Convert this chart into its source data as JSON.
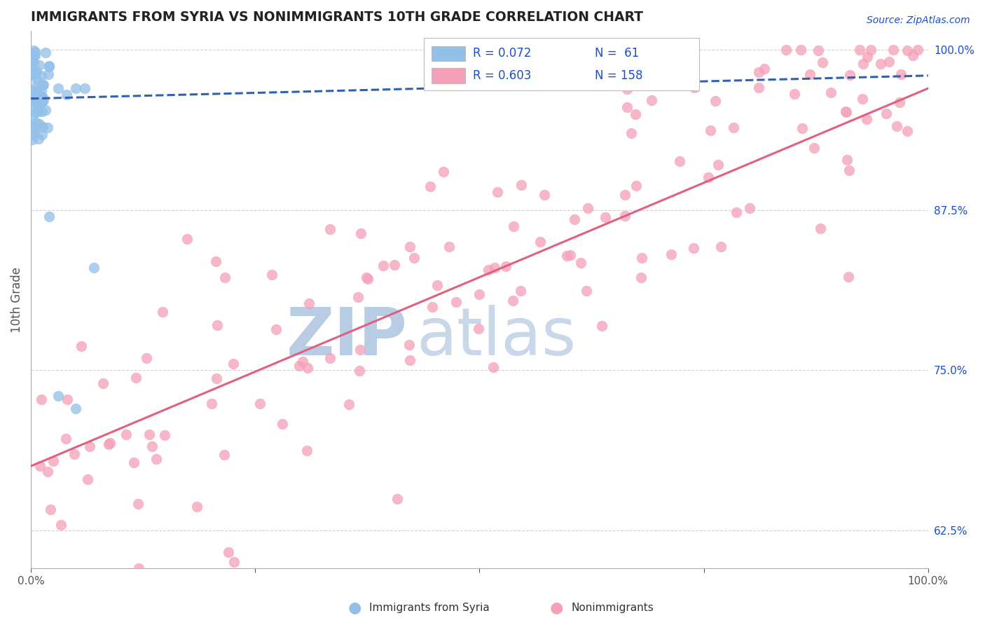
{
  "title": "IMMIGRANTS FROM SYRIA VS NONIMMIGRANTS 10TH GRADE CORRELATION CHART",
  "source_text": "Source: ZipAtlas.com",
  "ylabel": "10th Grade",
  "xlim": [
    0.0,
    1.0
  ],
  "ylim": [
    0.595,
    1.015
  ],
  "yticks": [
    0.625,
    0.75,
    0.875,
    1.0
  ],
  "ytick_labels": [
    "62.5%",
    "75.0%",
    "87.5%",
    "100.0%"
  ],
  "blue_R": 0.072,
  "blue_N": 61,
  "pink_R": 0.603,
  "pink_N": 158,
  "blue_color": "#92c0e8",
  "pink_color": "#f4a0b8",
  "trend_blue_color": "#3060b0",
  "trend_pink_color": "#e06080",
  "watermark_zip": "ZIP",
  "watermark_atlas": "atlas",
  "watermark_color_zip": "#b8cce4",
  "watermark_color_atlas": "#c8d8e8",
  "background_color": "#ffffff",
  "legend_color": "#1a4fcc",
  "grid_color": "#cccccc",
  "spine_color": "#aaaaaa",
  "tick_color": "#555555",
  "right_tick_color": "#1a4fcc",
  "title_color": "#222222",
  "source_color": "#1a4fcc"
}
